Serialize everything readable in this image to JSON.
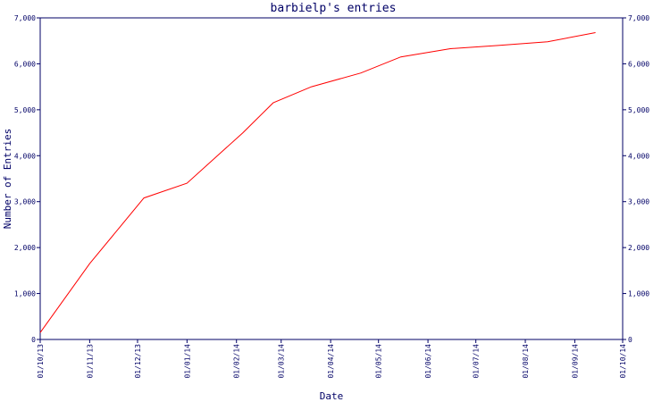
{
  "chart_data": {
    "type": "line",
    "title": "barbielp's entries",
    "xlabel": "Date",
    "ylabel": "Number of Entries",
    "x_ticks": [
      "01/10/13",
      "01/11/13",
      "01/12/13",
      "01/01/14",
      "01/02/14",
      "01/03/14",
      "01/04/14",
      "01/05/14",
      "01/06/14",
      "01/07/14",
      "01/08/14",
      "01/09/14",
      "01/10/14"
    ],
    "y_ticks": [
      "0",
      "1,000",
      "2,000",
      "3,000",
      "4,000",
      "5,000",
      "6,000",
      "7,000"
    ],
    "ylim": [
      0,
      7000
    ],
    "xlim": [
      "2013-10-01",
      "2014-10-01"
    ],
    "grid": false,
    "legend": "none",
    "series": [
      {
        "color": "#ff0000",
        "x": [
          "2013-10-01",
          "2013-11-01",
          "2013-12-05",
          "2014-01-01",
          "2014-02-05",
          "2014-02-24",
          "2014-03-20",
          "2014-04-20",
          "2014-05-15",
          "2014-06-15",
          "2014-07-15",
          "2014-08-15",
          "2014-09-14"
        ],
        "y": [
          150,
          1650,
          3080,
          3400,
          4500,
          5150,
          5500,
          5800,
          6150,
          6330,
          6400,
          6480,
          6680
        ]
      }
    ]
  }
}
